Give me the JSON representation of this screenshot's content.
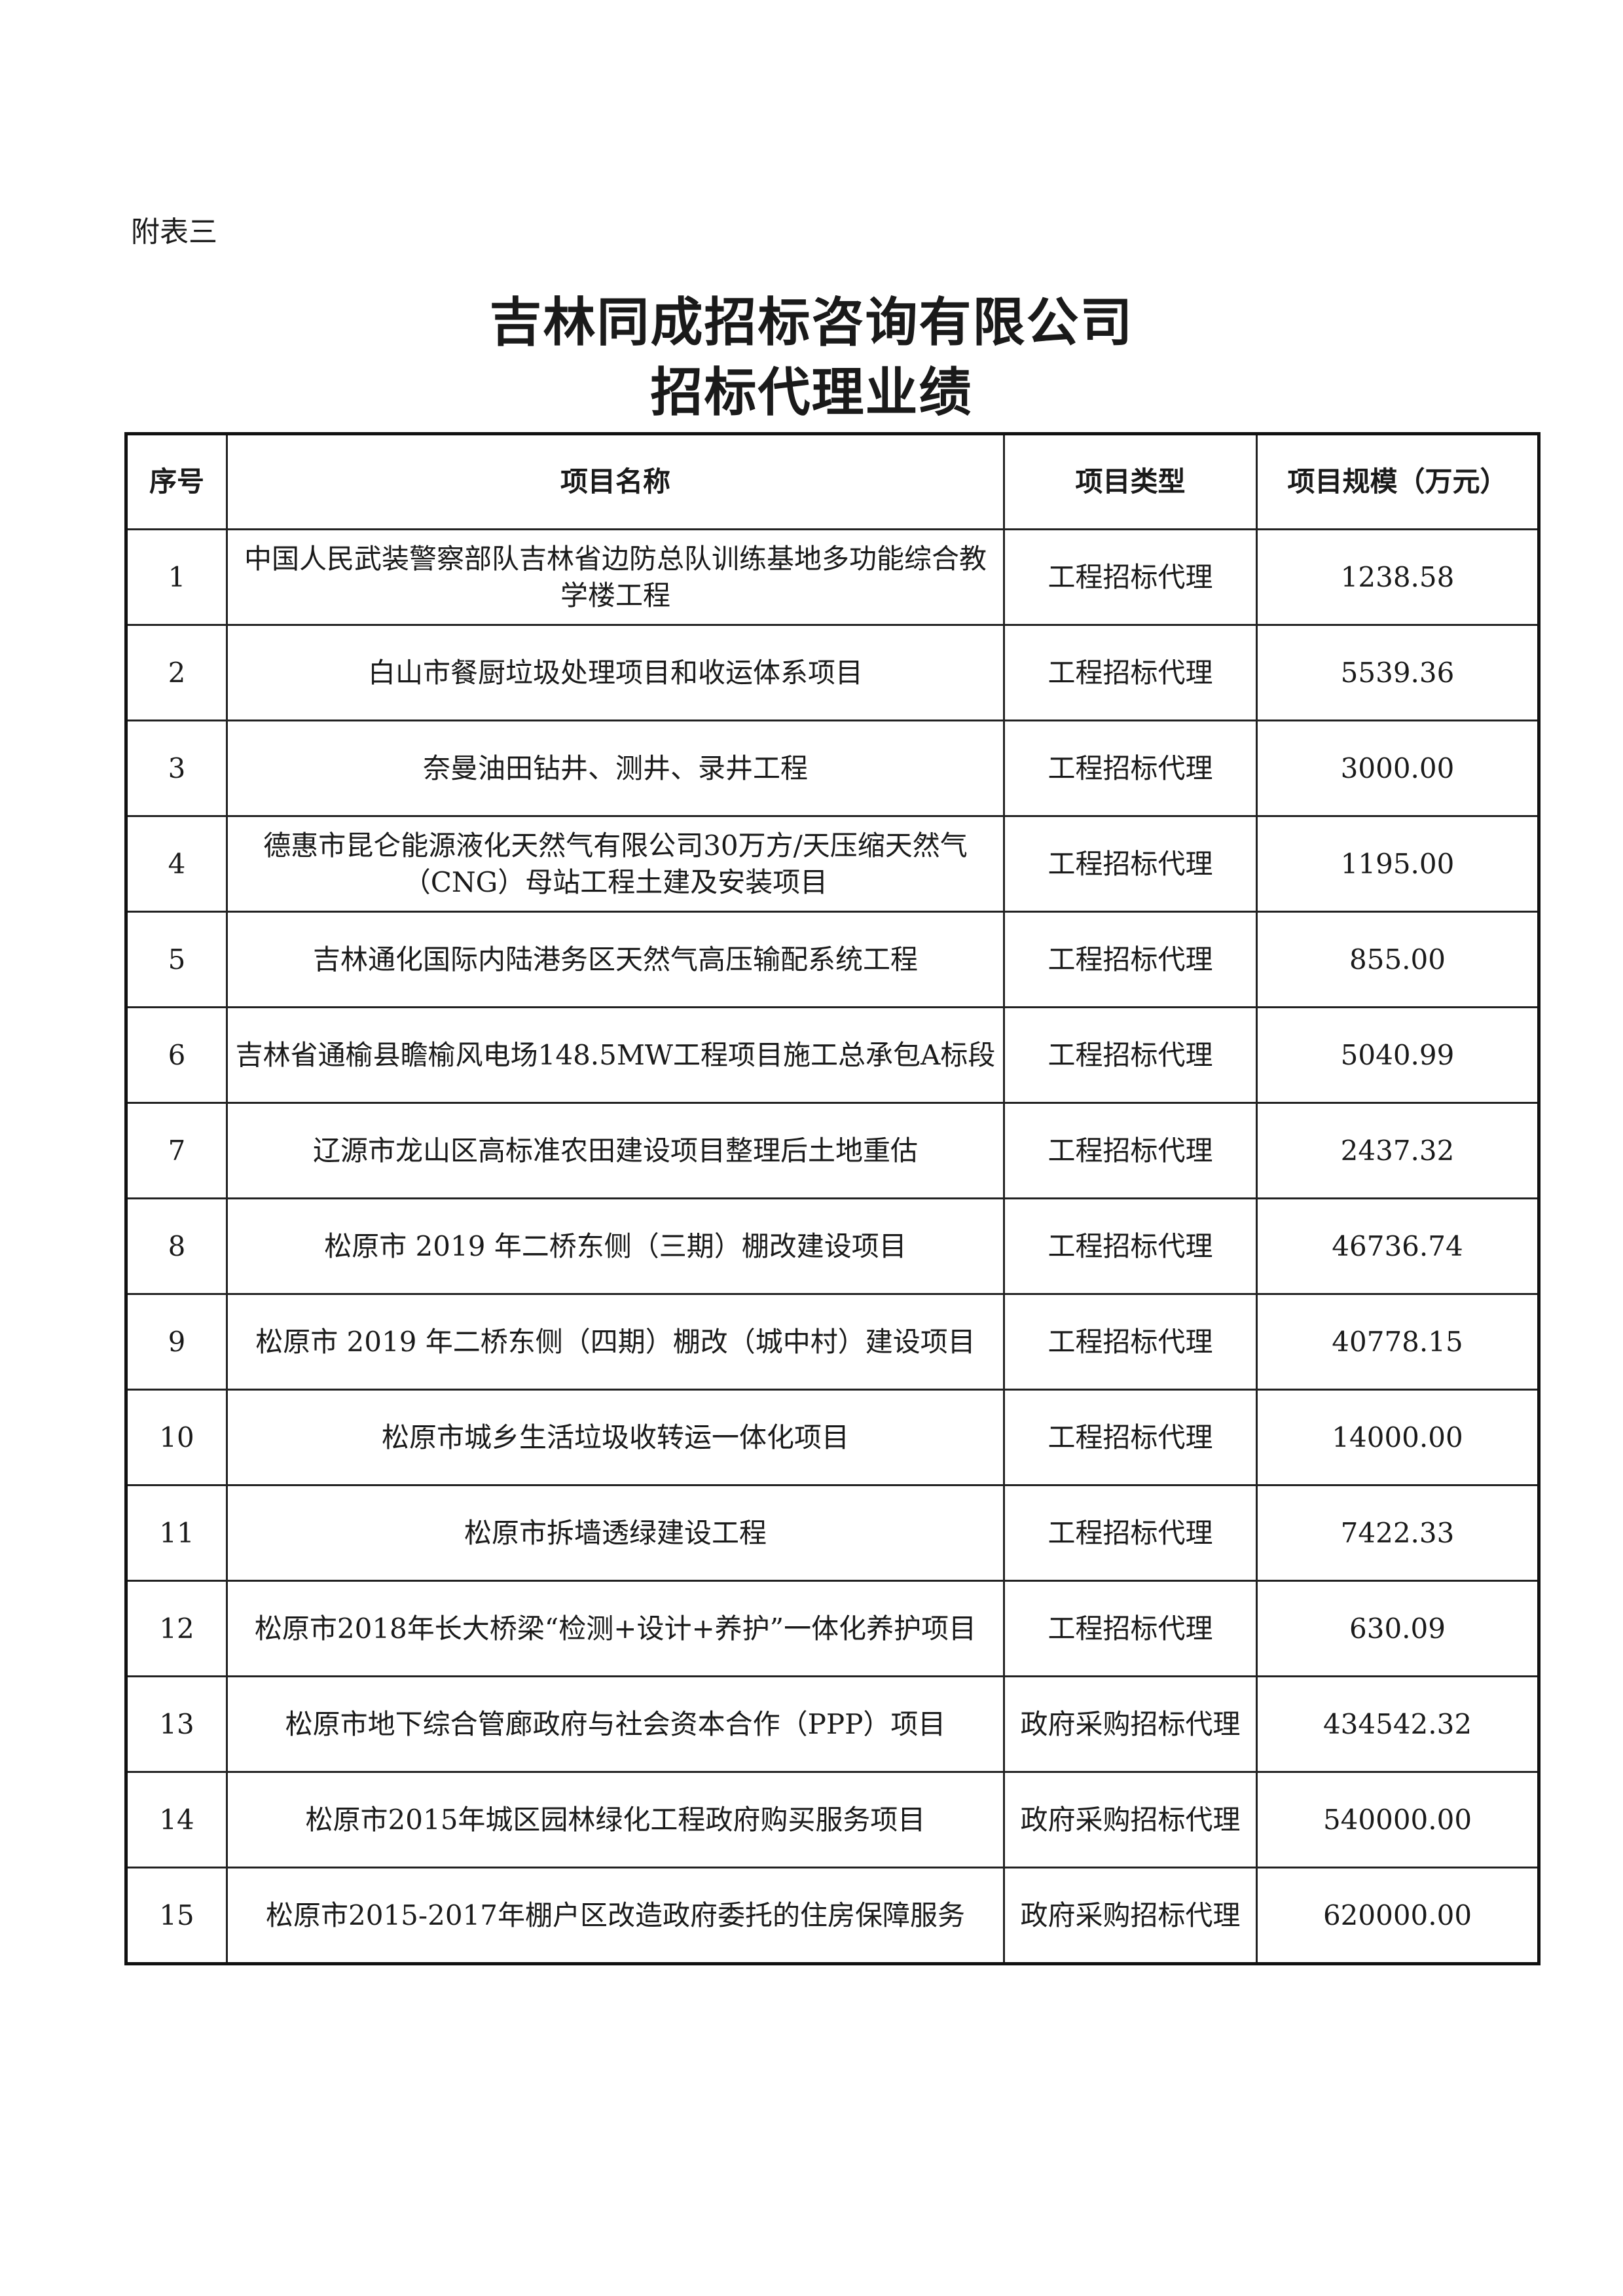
{
  "annex_label": "附表三",
  "title": {
    "line1": "吉林同成招标咨询有限公司",
    "line2": "招标代理业绩"
  },
  "table": {
    "headers": [
      "序号",
      "项目名称",
      "项目类型",
      "项目规模（万元）"
    ],
    "rows": [
      {
        "no": "1",
        "name": "中国人民武装警察部队吉林省边防总队训练基地多功能综合教学楼工程",
        "type": "工程招标代理",
        "scale": "1238.58"
      },
      {
        "no": "2",
        "name": "白山市餐厨垃圾处理项目和收运体系项目",
        "type": "工程招标代理",
        "scale": "5539.36"
      },
      {
        "no": "3",
        "name": "奈曼油田钻井、测井、录井工程",
        "type": "工程招标代理",
        "scale": "3000.00"
      },
      {
        "no": "4",
        "name": "德惠市昆仑能源液化天然气有限公司30万方/天压缩天然气（CNG）母站工程土建及安装项目",
        "type": "工程招标代理",
        "scale": "1195.00"
      },
      {
        "no": "5",
        "name": "吉林通化国际内陆港务区天然气高压输配系统工程",
        "type": "工程招标代理",
        "scale": "855.00"
      },
      {
        "no": "6",
        "name": "吉林省通榆县瞻榆风电场148.5MW工程项目施工总承包A标段",
        "type": "工程招标代理",
        "scale": "5040.99"
      },
      {
        "no": "7",
        "name": "辽源市龙山区高标准农田建设项目整理后土地重估",
        "type": "工程招标代理",
        "scale": "2437.32"
      },
      {
        "no": "8",
        "name": "松原市 2019 年二桥东侧（三期）棚改建设项目",
        "type": "工程招标代理",
        "scale": "46736.74"
      },
      {
        "no": "9",
        "name": "松原市 2019 年二桥东侧（四期）棚改（城中村）建设项目",
        "type": "工程招标代理",
        "scale": "40778.15"
      },
      {
        "no": "10",
        "name": "松原市城乡生活垃圾收转运一体化项目",
        "type": "工程招标代理",
        "scale": "14000.00"
      },
      {
        "no": "11",
        "name": "松原市拆墙透绿建设工程",
        "type": "工程招标代理",
        "scale": "7422.33"
      },
      {
        "no": "12",
        "name": "松原市2018年长大桥梁“检测+设计+养护”一体化养护项目",
        "type": "工程招标代理",
        "scale": "630.09"
      },
      {
        "no": "13",
        "name": "松原市地下综合管廊政府与社会资本合作（PPP）项目",
        "type": "政府采购招标代理",
        "scale": "434542.32"
      },
      {
        "no": "14",
        "name": "松原市2015年城区园林绿化工程政府购买服务项目",
        "type": "政府采购招标代理",
        "scale": "540000.00"
      },
      {
        "no": "15",
        "name": "松原市2015-2017年棚户区改造政府委托的住房保障服务",
        "type": "政府采购招标代理",
        "scale": "620000.00"
      }
    ]
  }
}
